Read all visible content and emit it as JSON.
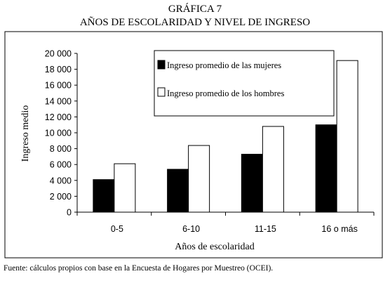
{
  "figure": {
    "title_line1": "GRÁFICA 7",
    "title_line2": "AÑOS DE ESCOLARIDAD Y NIVEL DE INGRESO",
    "source_note": "Fuente: cálculos propios con base en la Encuesta de Hogares por Muestreo (OCEI)."
  },
  "chart_data": {
    "type": "bar",
    "xlabel": "Años de escolaridad",
    "ylabel": "Ingreso medio",
    "categories": [
      "0-5",
      "6-10",
      "11-15",
      "16 o más"
    ],
    "ylim": [
      0,
      20000
    ],
    "yticks": [
      0,
      2000,
      4000,
      6000,
      8000,
      10000,
      12000,
      14000,
      16000,
      18000,
      20000
    ],
    "ytick_labels": [
      "0",
      "2 000",
      "4 000",
      "6 000",
      "8 000",
      "10 000",
      "12 000",
      "14 000",
      "16 000",
      "18 000",
      "20 000"
    ],
    "series": [
      {
        "name": "Ingreso promedio de las mujeres",
        "values": [
          4100,
          5400,
          7300,
          11000
        ],
        "color": "#000000"
      },
      {
        "name": "Ingreso promedio de los hombres",
        "values": [
          6100,
          8400,
          10800,
          19100
        ],
        "color": "#ffffff"
      }
    ],
    "legend_position": "top-right",
    "grid": false
  }
}
